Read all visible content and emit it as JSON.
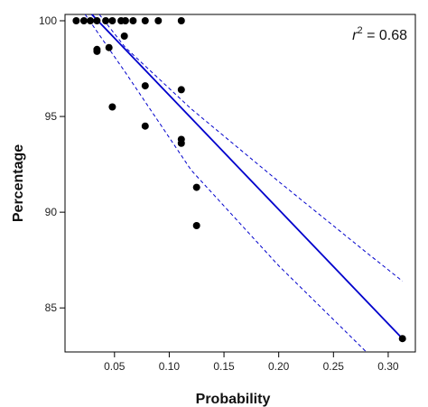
{
  "chart_data": {
    "type": "scatter",
    "xlabel": "Probability",
    "ylabel": "Percentage",
    "xlim": [
      0.0048,
      0.3248
    ],
    "ylim": [
      82.7,
      100.33
    ],
    "x_ticks": [
      0.05,
      0.1,
      0.15,
      0.2,
      0.25,
      0.3
    ],
    "x_tick_labels": [
      "0.05",
      "0.10",
      "0.15",
      "0.20",
      "0.25",
      "0.30"
    ],
    "y_ticks": [
      85,
      90,
      95,
      100
    ],
    "y_tick_labels": [
      "85",
      "90",
      "95",
      "100"
    ],
    "annotation": {
      "symbol": "r",
      "exponent": "2",
      "rest": " = 0.68"
    },
    "colors": {
      "points": "#000000",
      "fit": "#0000cc",
      "ci": "#0000cc"
    },
    "points": [
      {
        "x": 0.015,
        "y": 100.0
      },
      {
        "x": 0.022,
        "y": 100.0
      },
      {
        "x": 0.028,
        "y": 100.0
      },
      {
        "x": 0.034,
        "y": 100.0
      },
      {
        "x": 0.042,
        "y": 100.0
      },
      {
        "x": 0.048,
        "y": 100.0
      },
      {
        "x": 0.056,
        "y": 100.0
      },
      {
        "x": 0.06,
        "y": 100.0
      },
      {
        "x": 0.067,
        "y": 100.0
      },
      {
        "x": 0.078,
        "y": 100.0
      },
      {
        "x": 0.09,
        "y": 100.0
      },
      {
        "x": 0.111,
        "y": 100.0
      },
      {
        "x": 0.059,
        "y": 99.2
      },
      {
        "x": 0.034,
        "y": 98.5
      },
      {
        "x": 0.034,
        "y": 98.4
      },
      {
        "x": 0.045,
        "y": 98.6
      },
      {
        "x": 0.078,
        "y": 96.6
      },
      {
        "x": 0.111,
        "y": 96.4
      },
      {
        "x": 0.048,
        "y": 95.5
      },
      {
        "x": 0.078,
        "y": 94.5
      },
      {
        "x": 0.111,
        "y": 93.8
      },
      {
        "x": 0.111,
        "y": 93.6
      },
      {
        "x": 0.125,
        "y": 91.3
      },
      {
        "x": 0.125,
        "y": 89.3
      },
      {
        "x": 0.313,
        "y": 83.4
      }
    ],
    "fit_line": [
      {
        "x": 0.0293,
        "y": 100.33
      },
      {
        "x": 0.313,
        "y": 83.4
      }
    ],
    "ci_upper": [
      {
        "x": 0.0361,
        "y": 100.33
      },
      {
        "x": 0.06,
        "y": 98.6
      },
      {
        "x": 0.12,
        "y": 95.4
      },
      {
        "x": 0.2,
        "y": 91.6
      },
      {
        "x": 0.28,
        "y": 87.9
      },
      {
        "x": 0.313,
        "y": 86.4
      }
    ],
    "ci_lower": [
      {
        "x": 0.0232,
        "y": 100.33
      },
      {
        "x": 0.06,
        "y": 97.3
      },
      {
        "x": 0.12,
        "y": 92.2
      },
      {
        "x": 0.2,
        "y": 87.2
      },
      {
        "x": 0.28,
        "y": 82.7
      }
    ]
  }
}
